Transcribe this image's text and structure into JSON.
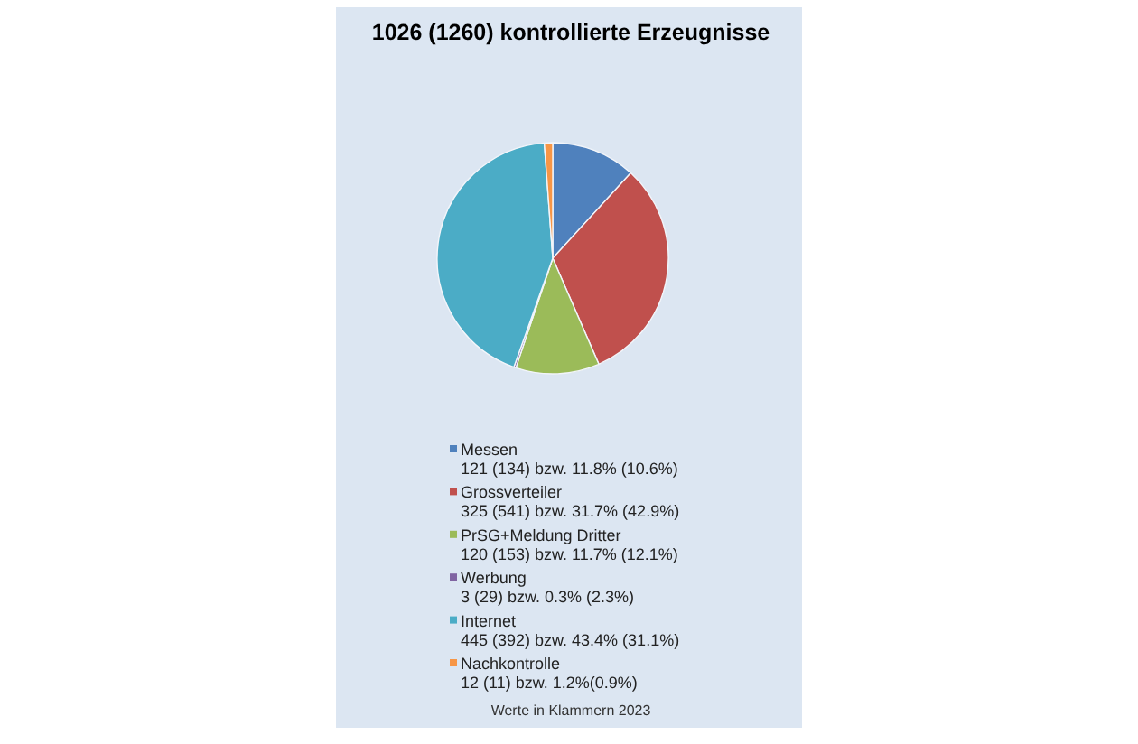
{
  "chart_data": {
    "type": "pie",
    "title": "1026 (1260) kontrollierte Erzeugnisse",
    "categories": [
      "Messen",
      "Grossverteiler",
      "PrSG+Meldung Dritter",
      "Werbung",
      "Internet",
      "Nachkontrolle"
    ],
    "values": [
      121,
      325,
      120,
      3,
      445,
      12
    ],
    "value_labels": [
      "121 (134) bzw. 11.8% (10.6%)",
      "325 (541) bzw. 31.7% (42.9%)",
      "120 (153) bzw. 11.7% (12.1%)",
      "3 (29) bzw. 0.3% (2.3%)",
      "445 (392) bzw. 43.4% (31.1%)",
      "12 (11) bzw. 1.2%(0.9%)"
    ],
    "colors": [
      "#4f81bd",
      "#c0504d",
      "#9bbb59",
      "#8064a2",
      "#4bacc6",
      "#f79646"
    ],
    "legend": "bottom",
    "annotations": [
      "Werte in Klammern 2023"
    ]
  }
}
